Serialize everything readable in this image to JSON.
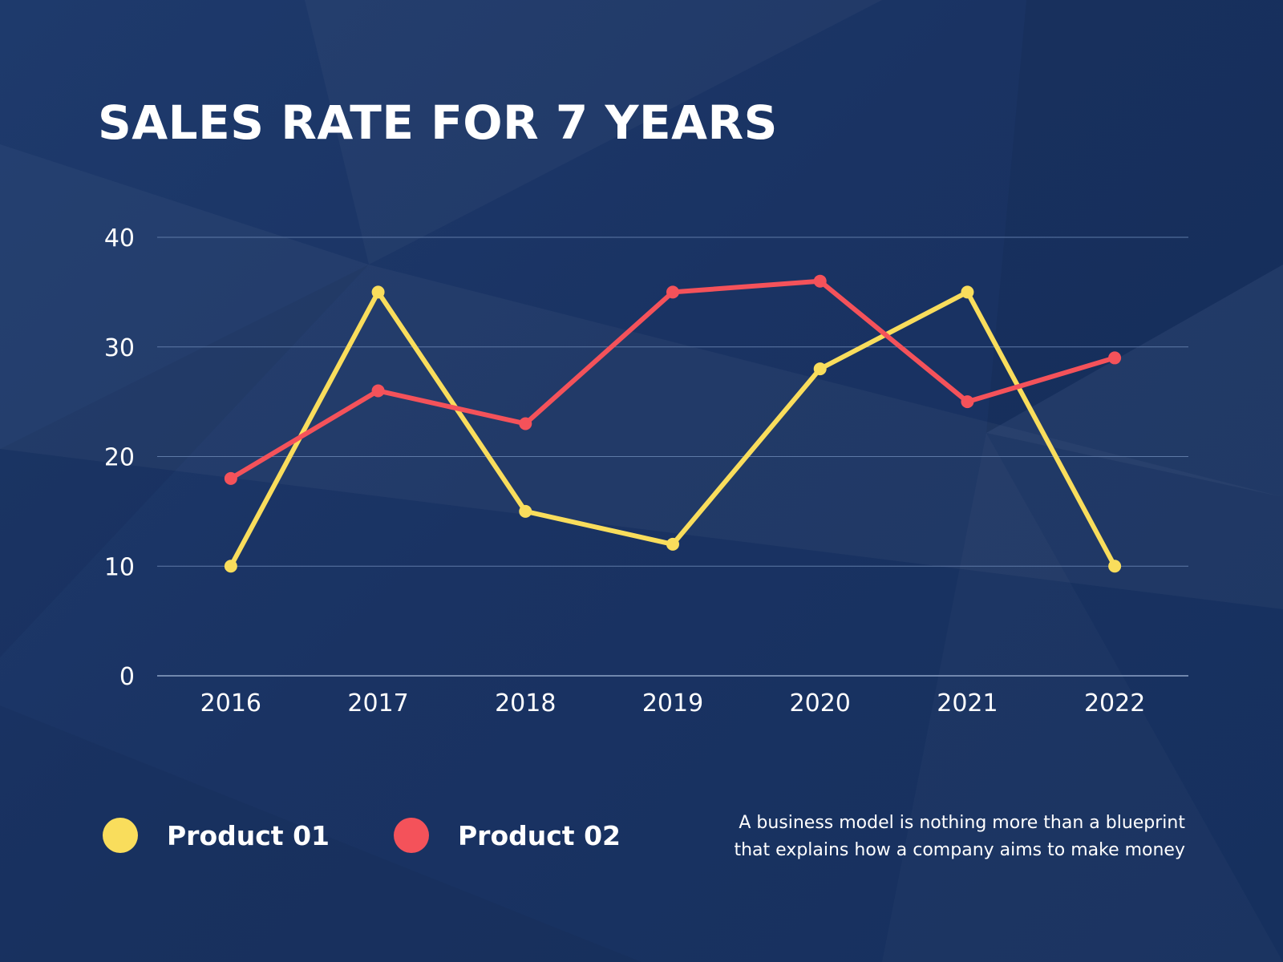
{
  "title": "SALES RATE FOR 7 YEARS",
  "chart_data": {
    "type": "line",
    "categories": [
      "2016",
      "2017",
      "2018",
      "2019",
      "2020",
      "2021",
      "2022"
    ],
    "series": [
      {
        "name": "Product 01",
        "color": "#f9dd5c",
        "values": [
          10,
          35,
          15,
          12,
          28,
          35,
          10
        ]
      },
      {
        "name": "Product 02",
        "color": "#f4525a",
        "values": [
          18,
          26,
          23,
          35,
          36,
          25,
          29
        ]
      }
    ],
    "yticks": [
      "0",
      "10",
      "20",
      "30",
      "40"
    ],
    "ylim": [
      0,
      40
    ],
    "grid": true,
    "legend_position": "bottom-left"
  },
  "legend": [
    {
      "label": "Product 01",
      "color": "#f9dd5c"
    },
    {
      "label": "Product 02",
      "color": "#f4525a"
    }
  ],
  "note": {
    "line1": "A business model is nothing more than a blueprint",
    "line2": "that explains how a company aims to make money"
  }
}
